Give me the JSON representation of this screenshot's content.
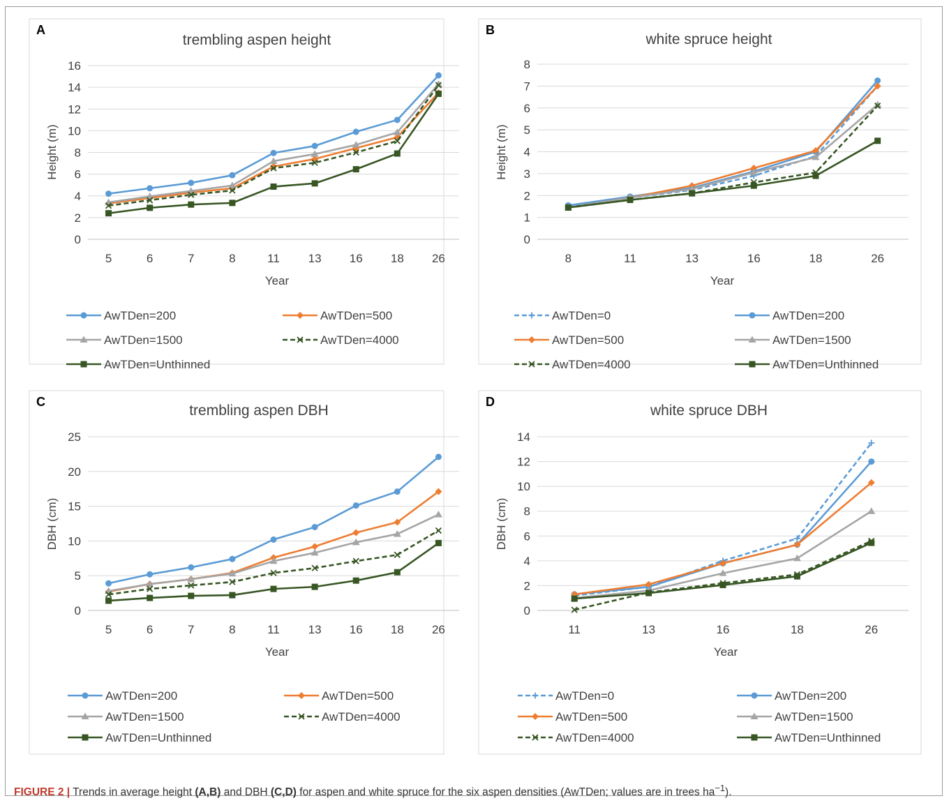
{
  "chart_data": [
    {
      "type": "line",
      "panel_label": "A",
      "title": "trembling aspen height",
      "xlabel": "Year",
      "ylabel": "Height (m)",
      "categories": [
        "5",
        "6",
        "7",
        "8",
        "11",
        "13",
        "16",
        "18",
        "26"
      ],
      "ylim": [
        0,
        16
      ],
      "ytick_step": 2,
      "grid": true,
      "legend_position": "bottom",
      "series": [
        {
          "name": "AwTDen=200",
          "color": "#5b9bd5",
          "dashed": false,
          "marker": "circle",
          "values": [
            4.2,
            4.7,
            5.2,
            5.9,
            7.95,
            8.6,
            9.9,
            11.0,
            15.1
          ]
        },
        {
          "name": "AwTDen=500",
          "color": "#ed7d31",
          "dashed": false,
          "marker": "diamond",
          "values": [
            3.3,
            3.8,
            4.3,
            4.7,
            6.7,
            7.4,
            8.4,
            9.4,
            13.5
          ]
        },
        {
          "name": "AwTDen=1500",
          "color": "#a5a5a5",
          "dashed": false,
          "marker": "triangle",
          "values": [
            3.4,
            3.95,
            4.45,
            4.95,
            7.2,
            7.85,
            8.7,
            9.85,
            14.3
          ]
        },
        {
          "name": "AwTDen=4000",
          "color": "#375623",
          "dashed": true,
          "marker": "x",
          "values": [
            3.1,
            3.6,
            4.1,
            4.5,
            6.55,
            7.05,
            8.0,
            9.05,
            14.2
          ]
        },
        {
          "name": "AwTDen=Unthinned",
          "color": "#375623",
          "dashed": false,
          "marker": "square",
          "values": [
            2.4,
            2.9,
            3.2,
            3.35,
            4.85,
            5.15,
            6.45,
            7.9,
            13.4
          ]
        }
      ]
    },
    {
      "type": "line",
      "panel_label": "B",
      "title": "white spruce height",
      "xlabel": "Year",
      "ylabel": "Height (m)",
      "categories": [
        "8",
        "11",
        "13",
        "16",
        "18",
        "26"
      ],
      "ylim": [
        0,
        8
      ],
      "ytick_step": 1,
      "grid": true,
      "legend_position": "bottom",
      "series": [
        {
          "name": "AwTDen=0",
          "color": "#5b9bd5",
          "dashed": true,
          "marker": "plus",
          "values": [
            1.5,
            1.9,
            2.25,
            2.9,
            3.8,
            7.0
          ]
        },
        {
          "name": "AwTDen=200",
          "color": "#5b9bd5",
          "dashed": false,
          "marker": "circle",
          "values": [
            1.55,
            1.95,
            2.35,
            3.1,
            4.0,
            7.25
          ]
        },
        {
          "name": "AwTDen=500",
          "color": "#ed7d31",
          "dashed": false,
          "marker": "diamond",
          "values": [
            1.45,
            1.9,
            2.45,
            3.25,
            4.05,
            7.0
          ]
        },
        {
          "name": "AwTDen=1500",
          "color": "#a5a5a5",
          "dashed": false,
          "marker": "triangle",
          "values": [
            1.45,
            1.9,
            2.3,
            3.05,
            3.75,
            6.15
          ]
        },
        {
          "name": "AwTDen=4000",
          "color": "#375623",
          "dashed": true,
          "marker": "x",
          "values": [
            1.45,
            1.8,
            2.1,
            2.6,
            3.05,
            6.1
          ]
        },
        {
          "name": "AwTDen=Unthinned",
          "color": "#375623",
          "dashed": false,
          "marker": "square",
          "values": [
            1.45,
            1.8,
            2.1,
            2.45,
            2.9,
            4.5
          ]
        }
      ]
    },
    {
      "type": "line",
      "panel_label": "C",
      "title": "trembling aspen DBH",
      "xlabel": "Year",
      "ylabel": "DBH (cm)",
      "categories": [
        "5",
        "6",
        "7",
        "8",
        "11",
        "13",
        "16",
        "18",
        "26"
      ],
      "ylim": [
        0,
        25
      ],
      "ytick_step": 5,
      "grid": true,
      "legend_position": "bottom",
      "series": [
        {
          "name": "AwTDen=200",
          "color": "#5b9bd5",
          "dashed": false,
          "marker": "circle",
          "values": [
            3.9,
            5.2,
            6.2,
            7.4,
            10.2,
            12.0,
            15.1,
            17.1,
            22.1
          ]
        },
        {
          "name": "AwTDen=500",
          "color": "#ed7d31",
          "dashed": false,
          "marker": "diamond",
          "values": [
            2.7,
            3.8,
            4.5,
            5.4,
            7.6,
            9.2,
            11.2,
            12.7,
            17.1
          ]
        },
        {
          "name": "AwTDen=1500",
          "color": "#a5a5a5",
          "dashed": false,
          "marker": "triangle",
          "values": [
            2.8,
            3.8,
            4.5,
            5.3,
            7.1,
            8.3,
            9.8,
            11.0,
            13.8
          ]
        },
        {
          "name": "AwTDen=4000",
          "color": "#375623",
          "dashed": true,
          "marker": "x",
          "values": [
            2.3,
            3.1,
            3.6,
            4.1,
            5.4,
            6.1,
            7.1,
            8.0,
            11.5
          ]
        },
        {
          "name": "AwTDen=Unthinned",
          "color": "#375623",
          "dashed": false,
          "marker": "square",
          "values": [
            1.4,
            1.8,
            2.1,
            2.2,
            3.1,
            3.4,
            4.3,
            5.5,
            9.7
          ]
        }
      ]
    },
    {
      "type": "line",
      "panel_label": "D",
      "title": "white spruce DBH",
      "xlabel": "Year",
      "ylabel": "DBH (cm)",
      "categories": [
        "11",
        "13",
        "16",
        "18",
        "26"
      ],
      "ylim": [
        0,
        14
      ],
      "ytick_step": 2,
      "grid": true,
      "legend_position": "bottom",
      "series": [
        {
          "name": "AwTDen=0",
          "color": "#5b9bd5",
          "dashed": true,
          "marker": "plus",
          "values": [
            1.2,
            1.9,
            4.0,
            5.8,
            13.5
          ]
        },
        {
          "name": "AwTDen=200",
          "color": "#5b9bd5",
          "dashed": false,
          "marker": "circle",
          "values": [
            1.3,
            1.9,
            3.8,
            5.3,
            12.0
          ]
        },
        {
          "name": "AwTDen=500",
          "color": "#ed7d31",
          "dashed": false,
          "marker": "diamond",
          "values": [
            1.3,
            2.1,
            3.8,
            5.3,
            10.3
          ]
        },
        {
          "name": "AwTDen=1500",
          "color": "#a5a5a5",
          "dashed": false,
          "marker": "triangle",
          "values": [
            1.0,
            1.6,
            3.0,
            4.2,
            8.0
          ]
        },
        {
          "name": "AwTDen=4000",
          "color": "#375623",
          "dashed": true,
          "marker": "x",
          "values": [
            0.05,
            1.45,
            2.2,
            2.9,
            5.6
          ]
        },
        {
          "name": "AwTDen=Unthinned",
          "color": "#375623",
          "dashed": false,
          "marker": "square",
          "values": [
            0.95,
            1.4,
            2.05,
            2.75,
            5.45
          ]
        }
      ]
    }
  ],
  "caption": {
    "label": "FIGURE 2 |",
    "text_1": " Trends in average height ",
    "ref_1": "(A,B)",
    "text_2": " and DBH ",
    "ref_2": "(C,D)",
    "text_3": " for aspen and white spruce for the six aspen densities (AwTDen; values are in trees ha",
    "sup": "−1",
    "text_4": ")."
  }
}
